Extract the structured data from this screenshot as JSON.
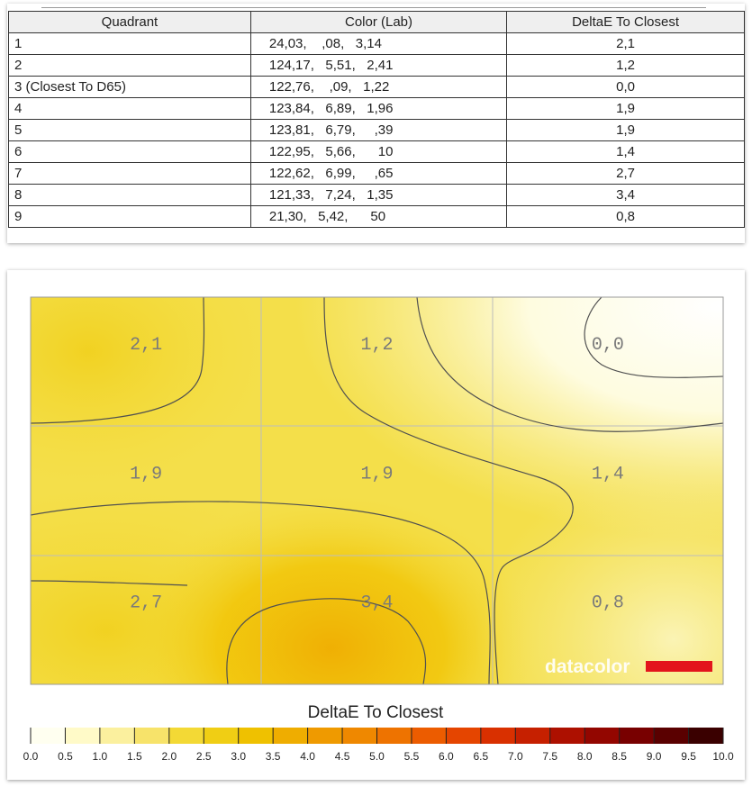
{
  "table": {
    "headers": [
      "Quadrant",
      "Color (Lab)",
      "DeltaE To Closest"
    ],
    "rows": [
      [
        "1",
        "24,03,    ,08,   3,14",
        "2,1"
      ],
      [
        "2",
        "124,17,   5,51,   2,41",
        "1,2"
      ],
      [
        "3 (Closest To D65)",
        "122,76,    ,09,   1,22",
        "0,0"
      ],
      [
        "4",
        "123,84,   6,89,   1,96",
        "1,9"
      ],
      [
        "5",
        "123,81,   6,79,     ,39",
        "1,9"
      ],
      [
        "6",
        "122,95,   5,66,      10",
        "1,4"
      ],
      [
        "7",
        "122,62,   6,99,     ,65",
        "2,7"
      ],
      [
        "8",
        "121,33,   7,24,   1,35",
        "3,4"
      ],
      [
        "9",
        "21,30,   5,42,      50",
        "0,8"
      ]
    ]
  },
  "chart_data": {
    "type": "heatmap",
    "title": "DeltaE To Closest",
    "grid": {
      "rows": 3,
      "cols": 3,
      "labels": [
        [
          "2,1",
          "1,2",
          "0,0"
        ],
        [
          "1,9",
          "1,9",
          "1,4"
        ],
        [
          "2,7",
          "3,4",
          "0,8"
        ]
      ],
      "values": [
        [
          2.1,
          1.2,
          0.0
        ],
        [
          1.9,
          1.9,
          1.4
        ],
        [
          2.7,
          3.4,
          0.8
        ]
      ]
    },
    "colorbar": {
      "range": [
        0,
        10
      ],
      "tick_labels": [
        "0.0",
        "0.5",
        "1.0",
        "1.5",
        "2.0",
        "2.5",
        "3.0",
        "3.5",
        "4.0",
        "4.5",
        "5.0",
        "5.5",
        "6.0",
        "6.5",
        "7.0",
        "7.5",
        "8.0",
        "8.5",
        "9.0",
        "9.5",
        "10.0"
      ],
      "colors": [
        "#fffff0",
        "#fffac8",
        "#fbf09e",
        "#f7e36a",
        "#f3d935",
        "#f0ce14",
        "#efc100",
        "#efad00",
        "#ef9a00",
        "#ef8800",
        "#ee7300",
        "#ec5c00",
        "#e54500",
        "#d93000",
        "#c62000",
        "#ad1000",
        "#930600",
        "#780000",
        "#5a0000",
        "#3a0000"
      ]
    },
    "watermark": "datacolor",
    "watermark_color": "#e3141c"
  }
}
